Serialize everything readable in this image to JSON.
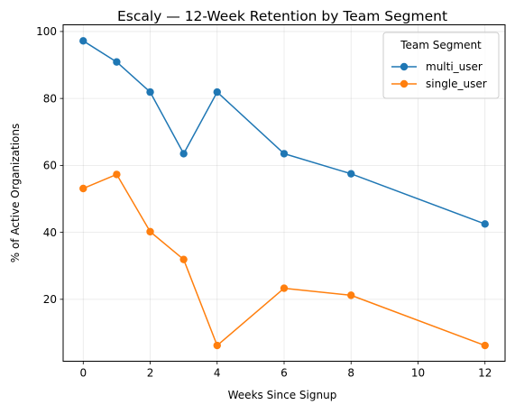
{
  "chart_data": {
    "type": "line",
    "title": "Escaly — 12-Week Retention by Team Segment",
    "xlabel": "Weeks Since Signup",
    "ylabel": "% of Active Organizations",
    "xlim": [
      -0.6,
      12.6
    ],
    "ylim": [
      1.5,
      102
    ],
    "xticks": [
      0,
      2,
      4,
      6,
      8,
      10,
      12
    ],
    "yticks": [
      20,
      40,
      60,
      80,
      100
    ],
    "grid": true,
    "legend": {
      "title": "Team Segment",
      "placement": "top-right"
    },
    "series": [
      {
        "name": "multi_user",
        "color": "#1f77b4",
        "x": [
          0,
          1,
          2,
          3,
          4,
          6,
          8,
          12
        ],
        "y": [
          97.2,
          90.9,
          81.9,
          63.5,
          81.9,
          63.5,
          57.5,
          42.5
        ]
      },
      {
        "name": "single_user",
        "color": "#ff7f0e",
        "x": [
          0,
          1,
          2,
          3,
          4,
          6,
          8,
          12
        ],
        "y": [
          53.1,
          57.3,
          40.2,
          31.9,
          6.2,
          23.3,
          21.2,
          6.2
        ]
      }
    ]
  }
}
